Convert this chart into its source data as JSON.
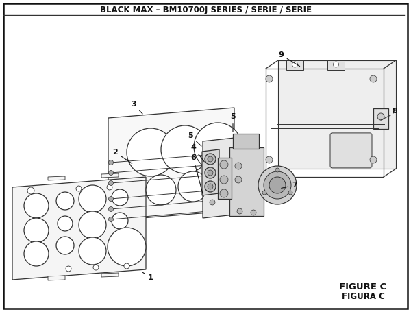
{
  "title": "BLACK MAX – BM10700J SERIES / SÉRIE / SERIE",
  "figure_label": "FIGURE C",
  "figura_label": "FIGURA C",
  "bg_color": "#ffffff",
  "border_color": "#111111",
  "line_color": "#333333",
  "title_fontsize": 8.5,
  "label_fontsize": 8,
  "figure_label_fontsize": 9.5
}
